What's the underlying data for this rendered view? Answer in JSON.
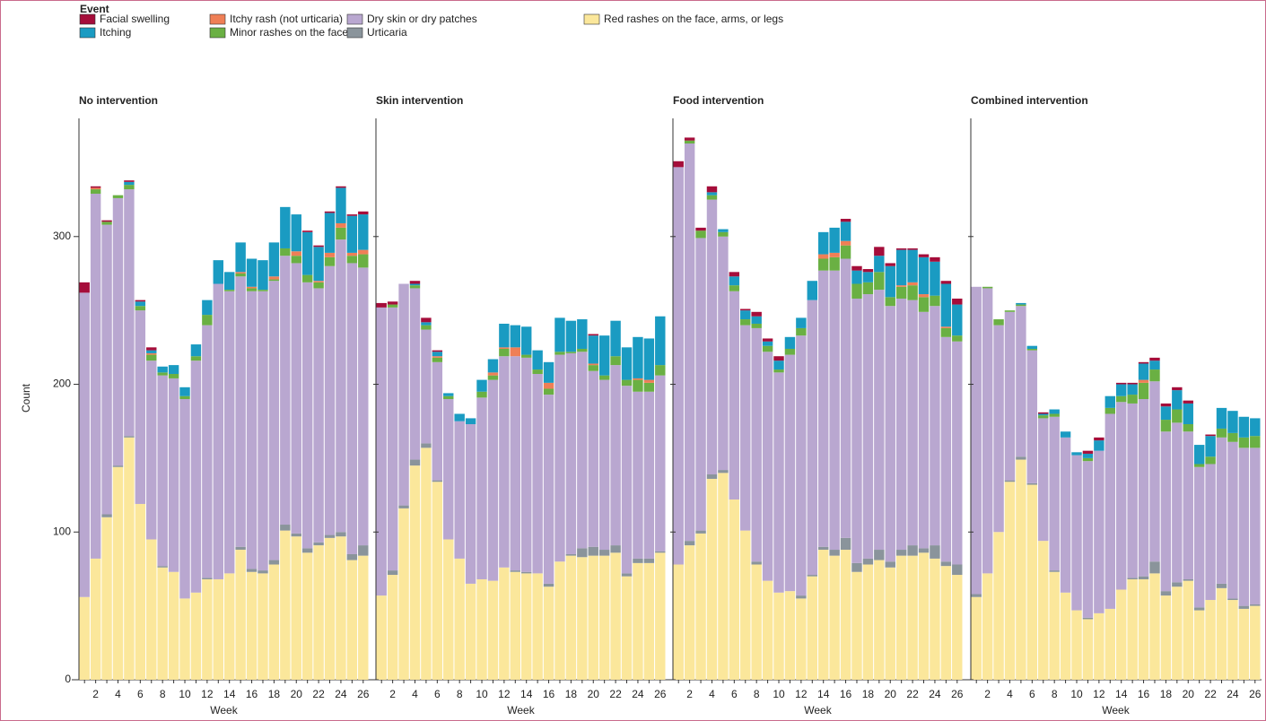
{
  "chart_data": {
    "type": "stacked_bar",
    "legend_title": "Event",
    "ylabel": "Count",
    "xlabel": "Week",
    "ylim": [
      0,
      380
    ],
    "yticks": [
      0,
      100,
      200,
      300
    ],
    "categories": [
      null,
      2,
      null,
      4,
      null,
      6,
      null,
      8,
      null,
      10,
      null,
      12,
      null,
      14,
      null,
      16,
      null,
      18,
      null,
      20,
      null,
      22,
      null,
      24,
      null,
      26
    ],
    "panels": [
      "No intervention",
      "Skin intervention",
      "Food intervention",
      "Combined   intervention"
    ],
    "series": [
      {
        "name": "Facial swelling",
        "color": "#a50d3a",
        "values": [
          [
            7,
            1,
            1,
            0,
            1,
            1,
            2,
            0,
            0,
            0,
            0,
            0,
            0,
            0,
            0,
            0,
            0,
            0,
            0,
            0,
            1,
            1,
            1,
            1,
            1,
            2
          ],
          [
            3,
            2,
            0,
            2,
            3,
            1,
            0,
            0,
            0,
            0,
            0,
            0,
            0,
            0,
            0,
            0,
            0,
            0,
            0,
            1,
            0,
            0,
            0,
            0,
            0,
            0
          ],
          [
            4,
            2,
            2,
            4,
            0,
            3,
            1,
            3,
            2,
            3,
            0,
            0,
            0,
            0,
            0,
            2,
            3,
            2,
            6,
            2,
            1,
            1,
            2,
            3,
            2,
            4
          ],
          [
            0,
            0,
            0,
            0,
            0,
            0,
            1,
            0,
            0,
            0,
            2,
            2,
            0,
            1,
            1,
            1,
            2,
            2,
            2,
            2,
            0,
            1,
            0,
            0,
            0,
            0
          ]
        ]
      },
      {
        "name": "Itching",
        "color": "#1a9bc2",
        "values": [
          [
            0,
            0,
            0,
            0,
            2,
            3,
            2,
            4,
            6,
            6,
            8,
            10,
            16,
            12,
            20,
            19,
            20,
            23,
            28,
            25,
            29,
            23,
            27,
            24,
            25,
            24
          ],
          [
            0,
            0,
            0,
            1,
            2,
            3,
            2,
            5,
            4,
            8,
            9,
            16,
            15,
            19,
            13,
            14,
            23,
            21,
            20,
            19,
            27,
            24,
            22,
            28,
            28,
            33
          ],
          [
            0,
            0,
            0,
            2,
            2,
            6,
            6,
            5,
            3,
            6,
            8,
            7,
            13,
            15,
            17,
            13,
            9,
            7,
            11,
            21,
            24,
            22,
            25,
            23,
            29,
            21
          ],
          [
            0,
            0,
            0,
            0,
            1,
            2,
            1,
            3,
            4,
            2,
            3,
            7,
            8,
            8,
            7,
            11,
            6,
            9,
            13,
            14,
            13,
            14,
            14,
            15,
            14,
            12
          ]
        ]
      },
      {
        "name": "Itchy rash (not urticaria)",
        "color": "#ef7f56",
        "values": [
          [
            0,
            1,
            0,
            0,
            0,
            0,
            1,
            0,
            0,
            0,
            0,
            0,
            0,
            0,
            1,
            1,
            0,
            2,
            0,
            3,
            0,
            1,
            3,
            3,
            2,
            3
          ],
          [
            0,
            0,
            0,
            0,
            0,
            1,
            0,
            0,
            0,
            0,
            2,
            1,
            6,
            0,
            0,
            4,
            0,
            0,
            0,
            1,
            0,
            0,
            0,
            1,
            2,
            0
          ],
          [
            0,
            0,
            0,
            0,
            0,
            0,
            0,
            0,
            0,
            0,
            0,
            0,
            0,
            3,
            3,
            3,
            0,
            0,
            0,
            0,
            1,
            2,
            2,
            0,
            1,
            0
          ],
          [
            0,
            0,
            0,
            0,
            0,
            0,
            0,
            0,
            0,
            0,
            0,
            0,
            0,
            0,
            0,
            2,
            0,
            0,
            0,
            0,
            0,
            0,
            0,
            0,
            0,
            0
          ]
        ]
      },
      {
        "name": "Minor rashes on the face",
        "color": "#6ab043",
        "values": [
          [
            0,
            3,
            2,
            2,
            3,
            3,
            4,
            2,
            3,
            2,
            3,
            7,
            0,
            1,
            2,
            2,
            1,
            1,
            5,
            5,
            5,
            4,
            6,
            8,
            5,
            9
          ],
          [
            0,
            2,
            0,
            2,
            3,
            3,
            2,
            0,
            0,
            4,
            3,
            5,
            0,
            2,
            3,
            4,
            2,
            1,
            2,
            4,
            3,
            6,
            4,
            8,
            6,
            7
          ],
          [
            0,
            2,
            5,
            3,
            3,
            4,
            4,
            3,
            4,
            2,
            4,
            5,
            0,
            8,
            9,
            9,
            10,
            8,
            12,
            6,
            8,
            10,
            10,
            7,
            6,
            4
          ],
          [
            0,
            1,
            4,
            1,
            1,
            1,
            2,
            2,
            0,
            0,
            2,
            0,
            4,
            4,
            6,
            11,
            8,
            8,
            9,
            5,
            2,
            5,
            6,
            6,
            7,
            8
          ]
        ]
      },
      {
        "name": "Dry skin or dry patches",
        "color": "#b9a7d0",
        "values": [
          [
            206,
            247,
            196,
            181,
            167,
            131,
            121,
            129,
            131,
            135,
            157,
            171,
            200,
            191,
            183,
            188,
            189,
            189,
            182,
            183,
            180,
            172,
            182,
            198,
            197,
            188
          ],
          [
            195,
            178,
            150,
            116,
            77,
            80,
            95,
            93,
            108,
            123,
            136,
            143,
            145,
            145,
            135,
            128,
            140,
            136,
            133,
            119,
            115,
            122,
            127,
            113,
            113,
            119
          ],
          [
            269,
            269,
            198,
            186,
            158,
            141,
            139,
            158,
            155,
            149,
            160,
            176,
            186,
            187,
            189,
            189,
            179,
            179,
            176,
            173,
            170,
            166,
            160,
            162,
            152,
            151
          ],
          [
            208,
            193,
            140,
            114,
            102,
            90,
            83,
            104,
            105,
            105,
            106,
            110,
            132,
            127,
            118,
            120,
            122,
            108,
            108,
            100,
            95,
            92,
            99,
            106,
            107,
            106
          ]
        ]
      },
      {
        "name": "Urticaria",
        "color": "#8a949b",
        "values": [
          [
            0,
            0,
            2,
            1,
            1,
            0,
            0,
            1,
            0,
            0,
            0,
            1,
            0,
            0,
            2,
            2,
            2,
            3,
            4,
            2,
            3,
            2,
            2,
            3,
            4,
            7
          ],
          [
            0,
            3,
            2,
            4,
            3,
            1,
            0,
            0,
            0,
            0,
            0,
            0,
            1,
            1,
            0,
            2,
            0,
            1,
            6,
            6,
            4,
            5,
            2,
            3,
            3,
            1
          ],
          [
            0,
            3,
            2,
            3,
            2,
            0,
            0,
            2,
            0,
            0,
            0,
            2,
            1,
            2,
            4,
            8,
            6,
            4,
            7,
            4,
            4,
            7,
            3,
            9,
            3,
            7
          ],
          [
            2,
            0,
            0,
            1,
            2,
            1,
            0,
            1,
            0,
            0,
            1,
            0,
            0,
            0,
            1,
            2,
            8,
            3,
            3,
            1,
            2,
            0,
            3,
            1,
            2,
            1
          ]
        ]
      },
      {
        "name": "Red rashes on the face, arms, or legs",
        "color": "#fbe79b",
        "values": [
          [
            56,
            82,
            110,
            144,
            164,
            119,
            95,
            76,
            73,
            55,
            59,
            68,
            68,
            72,
            88,
            73,
            72,
            78,
            101,
            97,
            86,
            91,
            96,
            97,
            81,
            84
          ],
          [
            57,
            71,
            116,
            145,
            157,
            134,
            95,
            82,
            65,
            68,
            67,
            76,
            73,
            72,
            72,
            63,
            80,
            84,
            83,
            84,
            84,
            86,
            70,
            79,
            79,
            86
          ],
          [
            78,
            91,
            99,
            136,
            140,
            122,
            101,
            78,
            67,
            59,
            60,
            55,
            70,
            88,
            84,
            88,
            73,
            78,
            81,
            76,
            84,
            84,
            86,
            82,
            77,
            71
          ],
          [
            56,
            72,
            100,
            134,
            149,
            132,
            94,
            73,
            59,
            47,
            41,
            45,
            48,
            61,
            68,
            68,
            72,
            57,
            63,
            67,
            47,
            54,
            62,
            54,
            48,
            50
          ]
        ]
      }
    ]
  }
}
